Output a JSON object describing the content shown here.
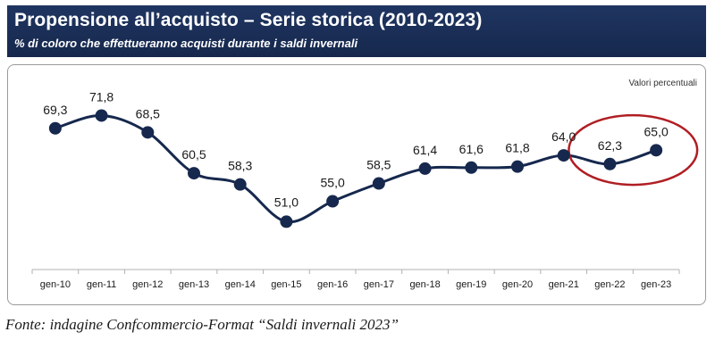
{
  "header": {
    "title": "Propensione all’acquisto – Serie storica (2010-2023)",
    "subtitle": "% di coloro che effettueranno acquisti durante i saldi invernali"
  },
  "source": "Fonte: indagine Confcommercio-Format “Saldi invernali 2023”",
  "chart_data": {
    "type": "line",
    "title": "Propensione all’acquisto – Serie storica (2010-2023)",
    "subtitle": "% di coloro che effettueranno acquisti durante i saldi invernali",
    "unit_note": "Valori percentuali",
    "categories": [
      "gen-10",
      "gen-11",
      "gen-12",
      "gen-13",
      "gen-14",
      "gen-15",
      "gen-16",
      "gen-17",
      "gen-18",
      "gen-19",
      "gen-20",
      "gen-21",
      "gen-22",
      "gen-23"
    ],
    "values": [
      69.3,
      71.8,
      68.5,
      60.5,
      58.3,
      51.0,
      55.0,
      58.5,
      61.4,
      61.6,
      61.8,
      64.0,
      62.3,
      65.0
    ],
    "value_labels": [
      "69,3",
      "71,8",
      "68,5",
      "60,5",
      "58,3",
      "51,0",
      "55,0",
      "58,5",
      "61,4",
      "61,6",
      "61,8",
      "64,0",
      "62,3",
      "65,0"
    ],
    "highlighted_categories": [
      "gen-22",
      "gen-23"
    ],
    "ylim": [
      46,
      78
    ],
    "grid": false,
    "colors": {
      "line": "#16284d",
      "marker": "#16284d",
      "highlight": "#b01e23",
      "header": "#1f3561"
    }
  }
}
